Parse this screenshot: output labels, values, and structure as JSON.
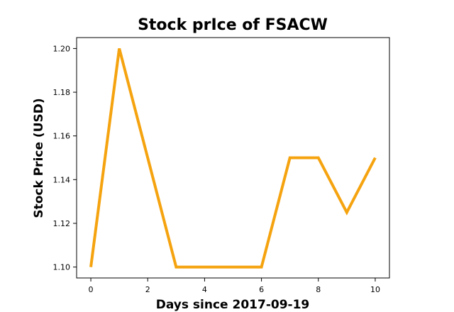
{
  "chart_data": {
    "type": "line",
    "title": "Stock prIce of FSACW",
    "xlabel": "Days since 2017-09-19",
    "ylabel": "Stock Price (USD)",
    "xlim": [
      -0.5,
      10.5
    ],
    "ylim": [
      1.095,
      1.205
    ],
    "xticks": [
      0,
      2,
      4,
      6,
      8,
      10
    ],
    "xtick_labels": [
      "0",
      "2",
      "4",
      "6",
      "8",
      "10"
    ],
    "yticks": [
      1.1,
      1.12,
      1.14,
      1.16,
      1.18,
      1.2
    ],
    "ytick_labels": [
      "1.10",
      "1.12",
      "1.14",
      "1.16",
      "1.18",
      "1.20"
    ],
    "grid": false,
    "series": [
      {
        "color": "#f5a30f",
        "x": [
          0,
          1,
          2,
          3,
          4,
          5,
          6,
          7,
          8,
          9,
          10
        ],
        "values": [
          1.1,
          1.2,
          1.15,
          1.1,
          1.1,
          1.1,
          1.1,
          1.15,
          1.15,
          1.125,
          1.15
        ]
      }
    ]
  }
}
